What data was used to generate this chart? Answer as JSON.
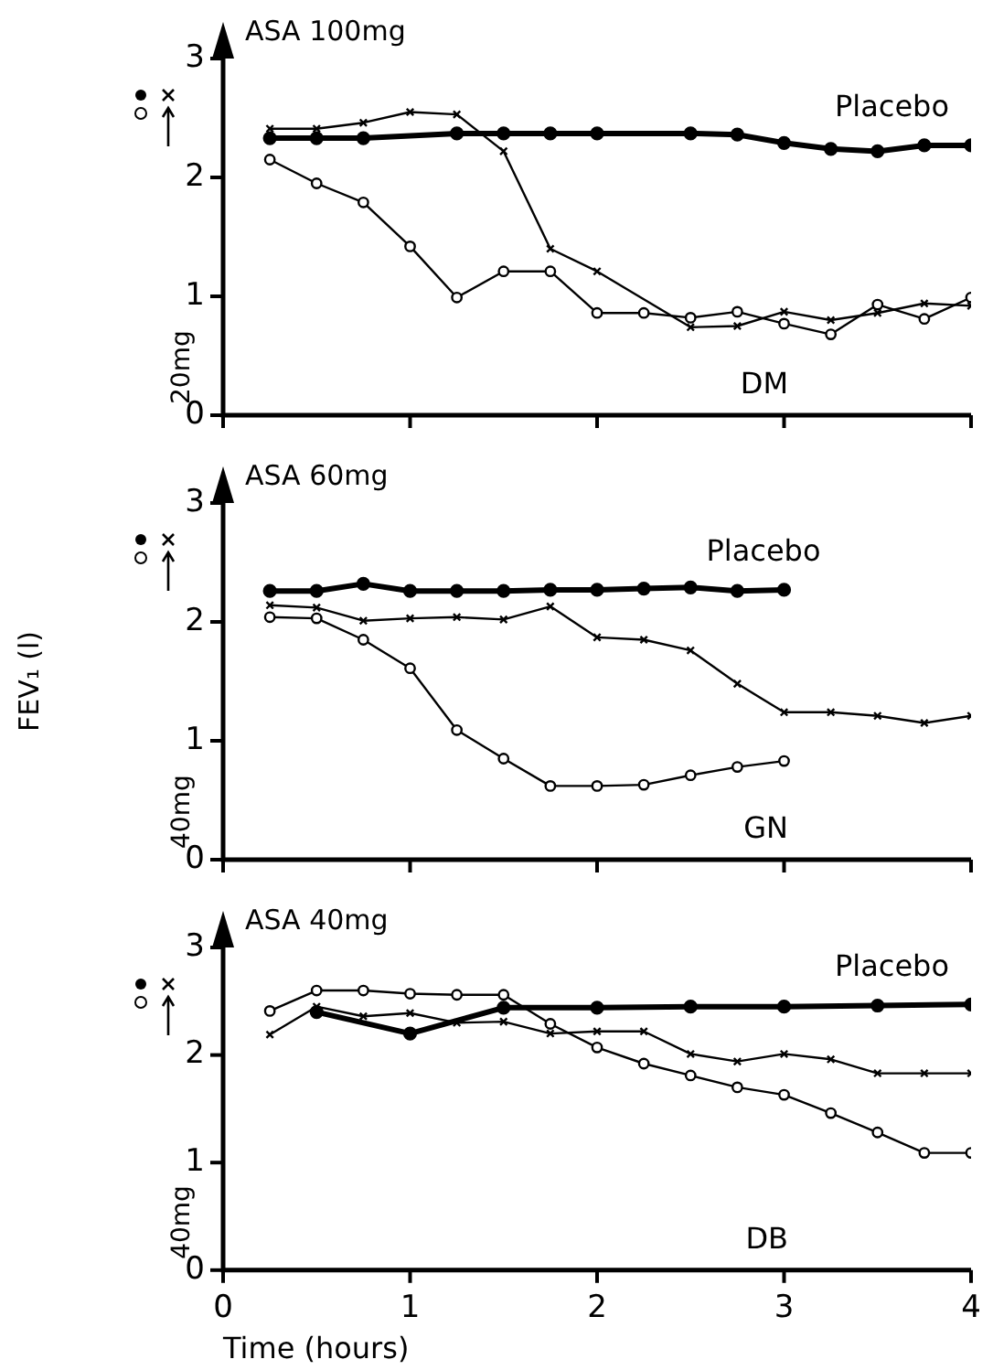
{
  "chart_data": [
    {
      "type": "line",
      "annotations": [
        "ASA 100mg",
        "20mg",
        "DM"
      ],
      "xlim": [
        0,
        4
      ],
      "xticks": [
        0,
        1,
        2,
        3,
        4
      ],
      "ylim": [
        0,
        3
      ],
      "yticks": [
        0,
        1,
        2,
        3
      ],
      "tick_labels": "y",
      "grid": false,
      "legend": false,
      "series": [
        {
          "name": "Placebo",
          "color": "#000000",
          "marker": "circle",
          "x": [
            0.25,
            0.5,
            0.75,
            1.25,
            1.5,
            1.75,
            2,
            2.5,
            2.75,
            3,
            3.25,
            3.5,
            3.75,
            4
          ],
          "values": [
            2.33,
            2.33,
            2.33,
            2.37,
            2.37,
            2.37,
            2.37,
            2.37,
            2.36,
            2.29,
            2.24,
            2.22,
            2.27,
            2.27
          ]
        },
        {
          "color": "#000000",
          "marker": "circle",
          "x": [
            0.25,
            0.5,
            0.75,
            1,
            1.25,
            1.5,
            1.75,
            2,
            2.25,
            2.5,
            2.75,
            3,
            3.25,
            3.5,
            3.75,
            4
          ],
          "values": [
            2.15,
            1.95,
            1.79,
            1.42,
            0.99,
            1.21,
            1.21,
            0.86,
            0.86,
            0.82,
            0.87,
            0.77,
            0.68,
            0.93,
            0.81,
            0.99
          ]
        },
        {
          "color": "#000000",
          "marker": "cross",
          "x": [
            0.25,
            0.5,
            0.75,
            1,
            1.25,
            1.5,
            1.75,
            2,
            2.5,
            2.75,
            3,
            3.25,
            3.5,
            3.75,
            4
          ],
          "values": [
            2.41,
            2.41,
            2.46,
            2.55,
            2.53,
            2.22,
            1.4,
            1.21,
            0.74,
            0.75,
            0.87,
            0.8,
            0.86,
            0.94,
            0.92
          ]
        }
      ]
    },
    {
      "type": "line",
      "ylabel": "FEV₁ (l)",
      "annotations": [
        "ASA 60mg",
        "40mg",
        "GN"
      ],
      "xlim": [
        0,
        4
      ],
      "xticks": [
        0,
        1,
        2,
        3,
        4
      ],
      "ylim": [
        0,
        3
      ],
      "yticks": [
        0,
        1,
        2,
        3
      ],
      "tick_labels": "y",
      "grid": false,
      "legend": false,
      "series": [
        {
          "name": "Placebo",
          "color": "#000000",
          "marker": "circle",
          "x": [
            0.25,
            0.5,
            0.75,
            1,
            1.25,
            1.5,
            1.75,
            2,
            2.25,
            2.5,
            2.75,
            3
          ],
          "values": [
            2.26,
            2.26,
            2.32,
            2.26,
            2.26,
            2.26,
            2.27,
            2.27,
            2.28,
            2.29,
            2.26,
            2.27
          ]
        },
        {
          "color": "#000000",
          "marker": "circle",
          "x": [
            0.25,
            0.5,
            0.75,
            1,
            1.25,
            1.5,
            1.75,
            2,
            2.25,
            2.5,
            2.75,
            3
          ],
          "values": [
            2.04,
            2.03,
            1.85,
            1.61,
            1.09,
            0.85,
            0.62,
            0.62,
            0.63,
            0.71,
            0.78,
            0.83
          ]
        },
        {
          "color": "#000000",
          "marker": "cross",
          "x": [
            0.25,
            0.5,
            0.75,
            1,
            1.25,
            1.5,
            1.75,
            2,
            2.25,
            2.5,
            2.75,
            3,
            3.25,
            3.5,
            3.75,
            4
          ],
          "values": [
            2.14,
            2.12,
            2.01,
            2.03,
            2.04,
            2.02,
            2.13,
            1.87,
            1.85,
            1.76,
            1.48,
            1.24,
            1.24,
            1.21,
            1.15,
            1.21
          ]
        }
      ]
    },
    {
      "type": "line",
      "xlabel": "Time (hours)",
      "annotations": [
        "ASA 40mg",
        "40mg",
        "DB"
      ],
      "xlim": [
        0,
        4
      ],
      "xticks": [
        0,
        1,
        2,
        3,
        4
      ],
      "ylim": [
        0,
        3
      ],
      "yticks": [
        0,
        1,
        2,
        3
      ],
      "grid": false,
      "legend": false,
      "series": [
        {
          "name": "Placebo",
          "color": "#000000",
          "marker": "circle",
          "x": [
            0.5,
            1,
            1.5,
            2,
            2.5,
            3,
            3.5,
            4
          ],
          "values": [
            2.4,
            2.2,
            2.44,
            2.44,
            2.45,
            2.45,
            2.46,
            2.47
          ]
        },
        {
          "color": "#000000",
          "marker": "circle",
          "x": [
            0.25,
            0.5,
            0.75,
            1,
            1.25,
            1.5,
            1.75,
            2,
            2.25,
            2.5,
            2.75,
            3,
            3.25,
            3.5,
            3.75,
            4
          ],
          "values": [
            2.41,
            2.6,
            2.6,
            2.57,
            2.56,
            2.56,
            2.29,
            2.07,
            1.92,
            1.81,
            1.7,
            1.63,
            1.46,
            1.28,
            1.09,
            1.09
          ]
        },
        {
          "color": "#000000",
          "marker": "cross",
          "x": [
            0.25,
            0.5,
            0.75,
            1,
            1.25,
            1.5,
            1.75,
            2,
            2.25,
            2.5,
            2.75,
            3,
            3.25,
            3.5,
            3.75,
            4
          ],
          "values": [
            2.19,
            2.45,
            2.36,
            2.39,
            2.3,
            2.31,
            2.2,
            2.22,
            2.22,
            2.01,
            1.94,
            2.01,
            1.96,
            1.83,
            1.83,
            1.83
          ]
        }
      ]
    }
  ]
}
